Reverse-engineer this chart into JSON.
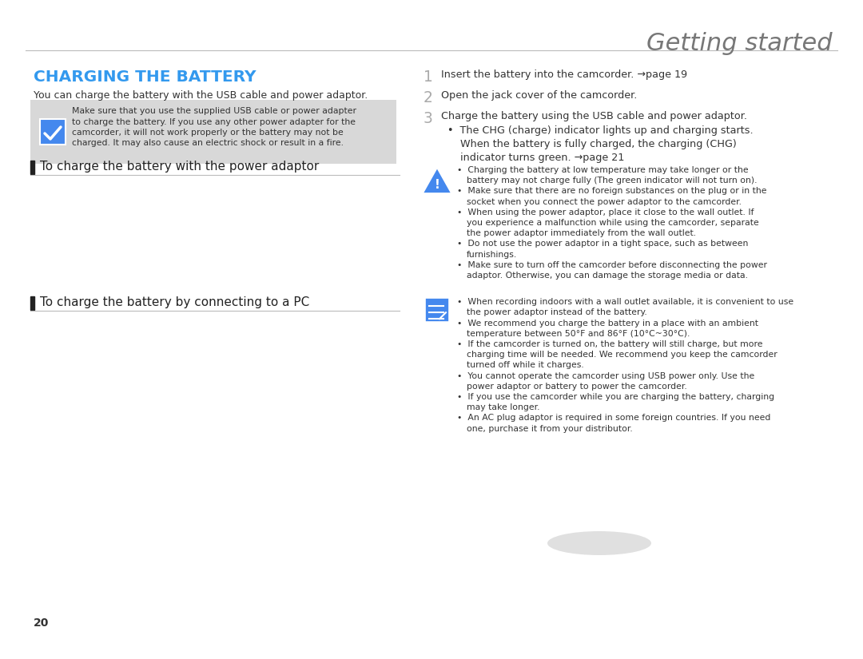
{
  "bg_color": "#ffffff",
  "title_text": "Getting started",
  "title_color": "#777777",
  "section_heading": "CHARGING THE BATTERY",
  "section_heading_color": "#3399ee",
  "intro_text": "You can charge the battery with the USB cable and power adaptor.",
  "warning_box_bg": "#d8d8d8",
  "warning_box_text_line1": "Make sure that you use the supplied USB cable or power adapter",
  "warning_box_text_line2": "to charge the battery. If you use any other power adapter for the",
  "warning_box_text_line3": "camcorder, it will not work properly or the battery may not be",
  "warning_box_text_line4": "charged. It may also cause an electric shock or result in a fire.",
  "subsection1": "To charge the battery with the power adaptor",
  "subsection2": "To charge the battery by connecting to a PC",
  "page_num": "20",
  "step1_num": "1",
  "step1_text": "Insert the battery into the camcorder. →page 19",
  "step2_num": "2",
  "step2_text": "Open the jack cover of the camcorder.",
  "step3_num": "3",
  "step3_text": "Charge the battery using the USB cable and power adaptor.",
  "step3_b1": "The CHG (charge) indicator lights up and charging starts.",
  "step3_b2": "When the battery is fully charged, the charging (CHG)",
  "step3_b3": "indicator turns green. →page 21",
  "warn2_lines": [
    "Charging the battery at low temperature may take longer or the",
    "battery may not charge fully (The green indicator will not turn on).",
    "Make sure that there are no foreign substances on the plug or in the",
    "socket when you connect the power adaptor to the camcorder.",
    "When using the power adaptor, place it close to the wall outlet. If",
    "you experience a malfunction while using the camcorder, separate",
    "the power adaptor immediately from the wall outlet.",
    "Do not use the power adaptor in a tight space, such as between",
    "furnishings.",
    "Make sure to turn off the camcorder before disconnecting the power",
    "adaptor. Otherwise, you can damage the storage media or data."
  ],
  "note_lines": [
    "When recording indoors with a wall outlet available, it is convenient to use",
    "the power adaptor instead of the battery.",
    "We recommend you charge the battery in a place with an ambient",
    "temperature between 50°F and 86°F (10°C~30°C).",
    "If the camcorder is turned on, the battery will still charge, but more",
    "charging time will be needed. We recommend you keep the camcorder",
    "turned off while it charges.",
    "You cannot operate the camcorder using USB power only. Use the",
    "power adaptor or battery to power the camcorder.",
    "If you use the camcorder while you are charging the battery, charging",
    "may take longer.",
    "An AC plug adaptor is required in some foreign countries. If you need",
    "one, purchase it from your distributor."
  ],
  "text_color": "#333333",
  "num_color": "#aaaaaa",
  "icon_color": "#4488ee",
  "divider_color": "#bbbbbb",
  "bar_color": "#222222",
  "shadow_color": "#bbbbbb"
}
